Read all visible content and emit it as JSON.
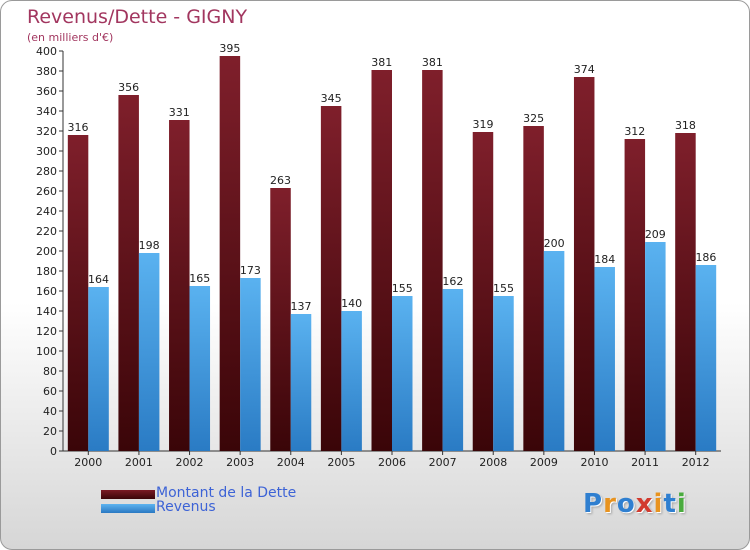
{
  "chart_data": {
    "type": "bar",
    "title": "Revenus/Dette - GIGNY",
    "subtitle": "(en milliers d'€)",
    "categories": [
      "2000",
      "2001",
      "2002",
      "2003",
      "2004",
      "2005",
      "2006",
      "2007",
      "2008",
      "2009",
      "2010",
      "2011",
      "2012"
    ],
    "series": [
      {
        "name": "Montant de la Dette",
        "values": [
          316,
          356,
          331,
          395,
          263,
          345,
          381,
          381,
          319,
          325,
          374,
          312,
          318
        ],
        "color": "#7a1a24"
      },
      {
        "name": "Revenus",
        "values": [
          164,
          198,
          165,
          173,
          137,
          140,
          155,
          162,
          155,
          200,
          184,
          209,
          186
        ],
        "color": "#4aa3e6"
      }
    ],
    "yticks": [
      0,
      20,
      40,
      60,
      80,
      100,
      120,
      140,
      160,
      180,
      200,
      220,
      240,
      260,
      280,
      300,
      320,
      340,
      360,
      380,
      400
    ],
    "ylim": [
      0,
      400
    ],
    "grid": false,
    "legend_position": "bottom-left"
  },
  "logo": {
    "text": "Proxiti",
    "letters": [
      "P",
      "r",
      "o",
      "x",
      "i",
      "t",
      "i"
    ],
    "colors": [
      "#2f7fd0",
      "#e8931f",
      "#2f7fd0",
      "#d23b2f",
      "#e8931f",
      "#2f7fd0",
      "#4aab3e"
    ]
  }
}
